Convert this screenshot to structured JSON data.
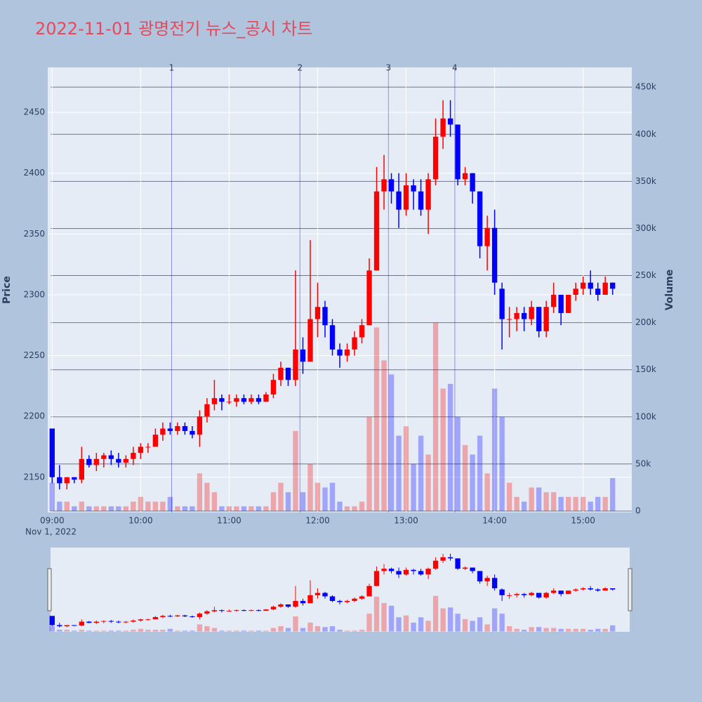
{
  "chart_data": {
    "type": "candlestick",
    "title": "2022-11-01 광명전기 뉴스_공시 차트",
    "y_label": "Price",
    "y2_label": "Volume",
    "x_sublabel": "Nov 1, 2022",
    "increasing_color": "#ff0000",
    "decreasing_color": "#0000ff",
    "xlim": [
      "08:57",
      "15:33"
    ],
    "xticks": [
      "09:00",
      "10:00",
      "11:00",
      "12:00",
      "13:00",
      "14:00",
      "15:00"
    ],
    "ylim": [
      2121,
      2487
    ],
    "yticks": [
      2150,
      2200,
      2250,
      2300,
      2350,
      2400,
      2450
    ],
    "y2lim": [
      -1500,
      471000
    ],
    "y2ticks": [
      0,
      {
        "value": 50000,
        "label": "50k"
      },
      {
        "value": 100000,
        "label": "100k"
      },
      {
        "value": 150000,
        "label": "150k"
      },
      {
        "value": 200000,
        "label": "200k"
      },
      {
        "value": 250000,
        "label": "250k"
      },
      {
        "value": 300000,
        "label": "300k"
      },
      {
        "value": 350000,
        "label": "350k"
      },
      {
        "value": 400000,
        "label": "400k"
      },
      {
        "value": 450000,
        "label": "450k"
      }
    ],
    "annotations": [
      {
        "label": "1",
        "x": "10:21"
      },
      {
        "label": "2",
        "x": "11:48"
      },
      {
        "label": "3",
        "x": "12:48"
      },
      {
        "label": "4",
        "x": "13:33"
      }
    ],
    "x": [
      "09:00",
      "09:05",
      "09:10",
      "09:15",
      "09:20",
      "09:25",
      "09:30",
      "09:35",
      "09:40",
      "09:45",
      "09:50",
      "09:55",
      "10:00",
      "10:05",
      "10:10",
      "10:15",
      "10:20",
      "10:25",
      "10:30",
      "10:35",
      "10:40",
      "10:45",
      "10:50",
      "10:55",
      "11:00",
      "11:05",
      "11:10",
      "11:15",
      "11:20",
      "11:25",
      "11:30",
      "11:35",
      "11:40",
      "11:45",
      "11:50",
      "11:55",
      "12:00",
      "12:05",
      "12:10",
      "12:15",
      "12:20",
      "12:25",
      "12:30",
      "12:35",
      "12:40",
      "12:45",
      "12:50",
      "12:55",
      "13:00",
      "13:05",
      "13:10",
      "13:15",
      "13:20",
      "13:25",
      "13:30",
      "13:35",
      "13:40",
      "13:45",
      "13:50",
      "13:55",
      "14:00",
      "14:05",
      "14:10",
      "14:15",
      "14:20",
      "14:25",
      "14:30",
      "14:35",
      "14:40",
      "14:45",
      "14:50",
      "14:55",
      "15:00",
      "15:05",
      "15:10",
      "15:15",
      "15:20"
    ],
    "open": [
      2190,
      2150,
      2145,
      2150,
      2148,
      2165,
      2160,
      2165,
      2168,
      2165,
      2162,
      2165,
      2170,
      2175,
      2175,
      2185,
      2190,
      2188,
      2192,
      2188,
      2185,
      2200,
      2210,
      2215,
      2212,
      2212,
      2215,
      2212,
      2215,
      2212,
      2218,
      2230,
      2240,
      2230,
      2255,
      2245,
      2280,
      2290,
      2275,
      2255,
      2250,
      2255,
      2265,
      2275,
      2320,
      2385,
      2395,
      2385,
      2370,
      2390,
      2385,
      2370,
      2395,
      2430,
      2445,
      2440,
      2395,
      2400,
      2385,
      2340,
      2355,
      2305,
      2280,
      2280,
      2285,
      2280,
      2290,
      2270,
      2290,
      2300,
      2285,
      2300,
      2305,
      2310,
      2305,
      2300,
      2310
    ],
    "high": [
      2190,
      2160,
      2150,
      2150,
      2175,
      2168,
      2170,
      2170,
      2172,
      2170,
      2168,
      2175,
      2178,
      2178,
      2190,
      2195,
      2195,
      2195,
      2195,
      2192,
      2205,
      2215,
      2230,
      2218,
      2218,
      2218,
      2218,
      2218,
      2218,
      2220,
      2235,
      2245,
      2240,
      2320,
      2265,
      2345,
      2310,
      2295,
      2280,
      2260,
      2260,
      2270,
      2280,
      2330,
      2405,
      2415,
      2400,
      2400,
      2400,
      2395,
      2395,
      2400,
      2445,
      2460,
      2460,
      2440,
      2405,
      2400,
      2385,
      2365,
      2370,
      2310,
      2290,
      2290,
      2290,
      2295,
      2290,
      2295,
      2310,
      2300,
      2300,
      2310,
      2315,
      2320,
      2310,
      2315,
      2310
    ],
    "low": [
      2145,
      2140,
      2140,
      2145,
      2145,
      2158,
      2155,
      2158,
      2160,
      2158,
      2158,
      2160,
      2165,
      2170,
      2175,
      2180,
      2185,
      2185,
      2185,
      2182,
      2175,
      2195,
      2205,
      2205,
      2210,
      2208,
      2210,
      2210,
      2210,
      2212,
      2215,
      2225,
      2225,
      2225,
      2235,
      2245,
      2265,
      2265,
      2250,
      2240,
      2245,
      2250,
      2260,
      2275,
      2320,
      2370,
      2375,
      2355,
      2365,
      2370,
      2365,
      2350,
      2390,
      2420,
      2430,
      2390,
      2390,
      2375,
      2330,
      2320,
      2300,
      2255,
      2265,
      2270,
      2270,
      2275,
      2265,
      2265,
      2285,
      2275,
      2285,
      2295,
      2300,
      2300,
      2295,
      2300,
      2300
    ],
    "close": [
      2150,
      2145,
      2150,
      2148,
      2165,
      2160,
      2165,
      2168,
      2165,
      2162,
      2165,
      2170,
      2175,
      2175,
      2185,
      2190,
      2188,
      2192,
      2188,
      2185,
      2200,
      2210,
      2215,
      2212,
      2212,
      2215,
      2212,
      2215,
      2212,
      2218,
      2230,
      2240,
      2230,
      2255,
      2245,
      2280,
      2290,
      2275,
      2255,
      2250,
      2255,
      2265,
      2275,
      2320,
      2385,
      2395,
      2385,
      2370,
      2390,
      2385,
      2370,
      2395,
      2430,
      2445,
      2440,
      2395,
      2400,
      2385,
      2340,
      2355,
      2310,
      2280,
      2280,
      2285,
      2280,
      2290,
      2270,
      2290,
      2300,
      2285,
      2300,
      2305,
      2310,
      2305,
      2300,
      2310,
      2305
    ],
    "volume": [
      30000,
      10000,
      10000,
      5000,
      10000,
      5000,
      5000,
      5000,
      5000,
      5000,
      5000,
      10000,
      15000,
      10000,
      10000,
      10000,
      15000,
      5000,
      5000,
      5000,
      40000,
      30000,
      20000,
      5000,
      5000,
      5000,
      5000,
      5000,
      5000,
      5000,
      20000,
      30000,
      20000,
      85000,
      20000,
      50000,
      30000,
      25000,
      30000,
      10000,
      5000,
      5000,
      10000,
      100000,
      195000,
      160000,
      145000,
      80000,
      90000,
      50000,
      80000,
      60000,
      200000,
      130000,
      135000,
      100000,
      70000,
      60000,
      80000,
      40000,
      130000,
      100000,
      30000,
      15000,
      10000,
      25000,
      25000,
      20000,
      20000,
      15000,
      15000,
      15000,
      15000,
      10000,
      15000,
      15000,
      35000
    ]
  }
}
